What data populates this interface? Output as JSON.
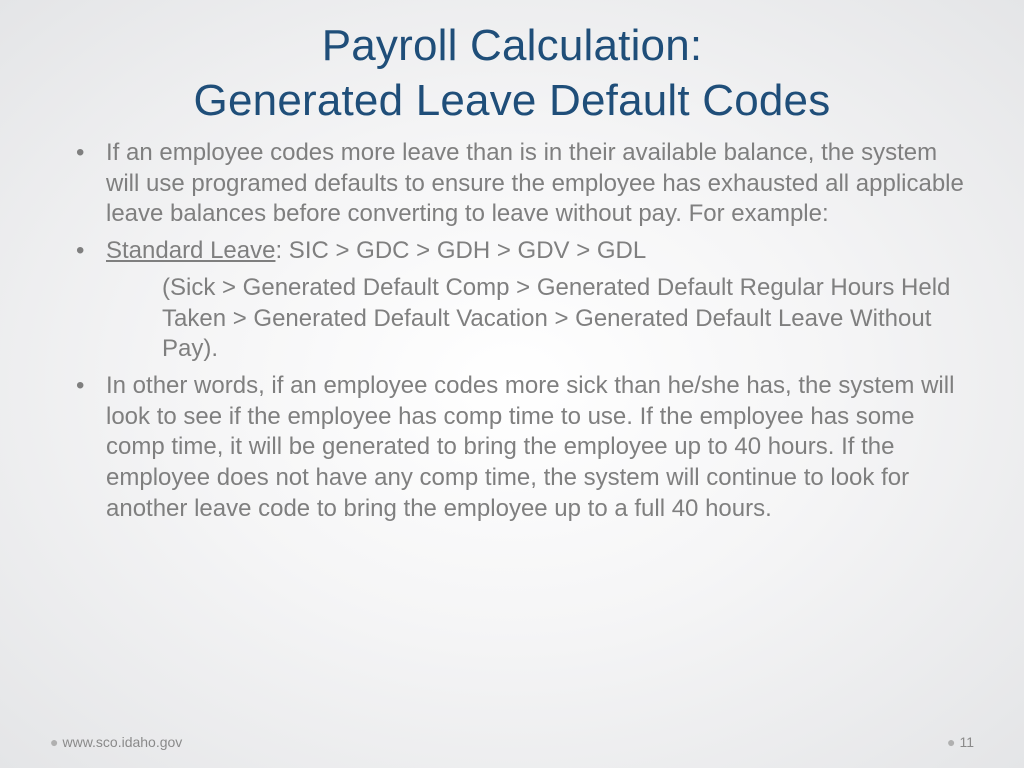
{
  "colors": {
    "title": "#1f4e79",
    "body_text": "#7f7f7f",
    "footer_text": "#8a8a8a",
    "footer_dot": "#b0b0b0",
    "bg_center": "#ffffff",
    "bg_edge": "#e4e5e7"
  },
  "typography": {
    "title_fontsize": 44,
    "body_fontsize": 24,
    "footer_fontsize": 14,
    "font_family": "Arial"
  },
  "title": {
    "line1": "Payroll Calculation:",
    "line2": "Generated Leave Default Codes"
  },
  "bullets": {
    "b1": "If an employee codes more leave than is in their available balance, the system will use programed defaults to ensure the employee has exhausted all applicable leave balances before converting to leave without pay. For example:",
    "b2_label": "Standard Leave",
    "b2_rest": ": SIC > GDC > GDH > GDV > GDL",
    "b2_sub": "(Sick > Generated Default Comp > Generated Default Regular Hours Held Taken > Generated Default Vacation > Generated Default Leave Without Pay).",
    "b3": "In other words, if an employee codes more sick than he/she has, the system will look to see if the employee has comp time to use.  If the employee has some comp time, it will be generated to bring the employee up to 40 hours. If the employee does not have any comp time, the system will continue to look for another leave code to bring the employee up to a full 40 hours."
  },
  "footer": {
    "url": "www.sco.idaho.gov",
    "page_number": "11"
  }
}
